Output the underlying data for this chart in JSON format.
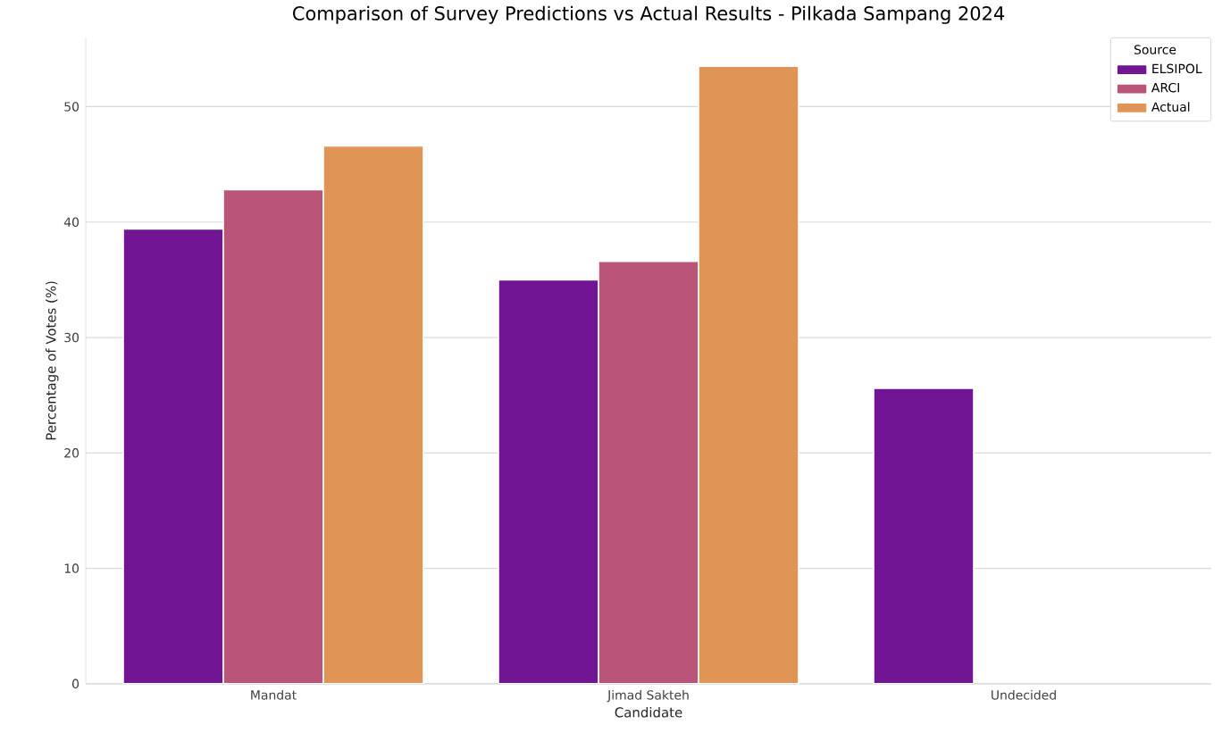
{
  "chart_data": {
    "type": "bar",
    "title": "Comparison of Survey Predictions vs Actual Results - Pilkada Sampang 2024",
    "xlabel": "Candidate",
    "ylabel": "Percentage of Votes (%)",
    "legend_title": "Source",
    "categories": [
      "Mandat",
      "Jimad Sakteh",
      "Undecided"
    ],
    "series": [
      {
        "name": "ELSIPOL",
        "color": "#721594",
        "values": [
          39.4,
          35.0,
          25.6
        ]
      },
      {
        "name": "ARCI",
        "color": "#bb5479",
        "values": [
          42.8,
          36.6,
          null
        ]
      },
      {
        "name": "Actual",
        "color": "#e09455",
        "values": [
          46.6,
          53.5,
          null
        ]
      }
    ],
    "ylim": [
      0,
      56
    ],
    "yticks": [
      0,
      10,
      20,
      30,
      40,
      50
    ],
    "grid": "y",
    "legend": "top right"
  }
}
